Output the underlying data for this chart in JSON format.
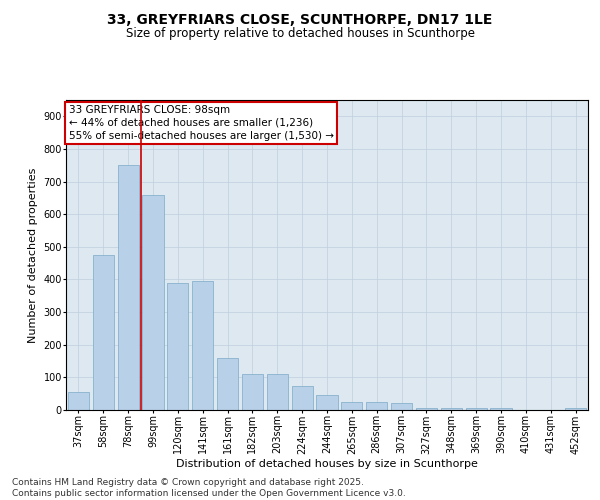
{
  "title": "33, GREYFRIARS CLOSE, SCUNTHORPE, DN17 1LE",
  "subtitle": "Size of property relative to detached houses in Scunthorpe",
  "xlabel": "Distribution of detached houses by size in Scunthorpe",
  "ylabel": "Number of detached properties",
  "categories": [
    "37sqm",
    "58sqm",
    "78sqm",
    "99sqm",
    "120sqm",
    "141sqm",
    "161sqm",
    "182sqm",
    "203sqm",
    "224sqm",
    "244sqm",
    "265sqm",
    "286sqm",
    "307sqm",
    "327sqm",
    "348sqm",
    "369sqm",
    "390sqm",
    "410sqm",
    "431sqm",
    "452sqm"
  ],
  "values": [
    55,
    475,
    750,
    660,
    390,
    395,
    160,
    110,
    110,
    75,
    45,
    25,
    25,
    20,
    5,
    5,
    5,
    5,
    0,
    0,
    5
  ],
  "bar_color": "#b8d0e8",
  "bar_edge_color": "#7aaac8",
  "grid_color": "#c0cfe0",
  "background_color": "#dde8f0",
  "annotation_box_text": "33 GREYFRIARS CLOSE: 98sqm\n← 44% of detached houses are smaller (1,236)\n55% of semi-detached houses are larger (1,530) →",
  "annotation_box_color": "#cc0000",
  "vline_x_index": 2.5,
  "vline_color": "#cc0000",
  "ylim": [
    0,
    950
  ],
  "yticks": [
    0,
    100,
    200,
    300,
    400,
    500,
    600,
    700,
    800,
    900
  ],
  "footer": "Contains HM Land Registry data © Crown copyright and database right 2025.\nContains public sector information licensed under the Open Government Licence v3.0.",
  "title_fontsize": 10,
  "subtitle_fontsize": 8.5,
  "xlabel_fontsize": 8,
  "ylabel_fontsize": 8,
  "tick_fontsize": 7,
  "annotation_fontsize": 7.5,
  "footer_fontsize": 6.5
}
